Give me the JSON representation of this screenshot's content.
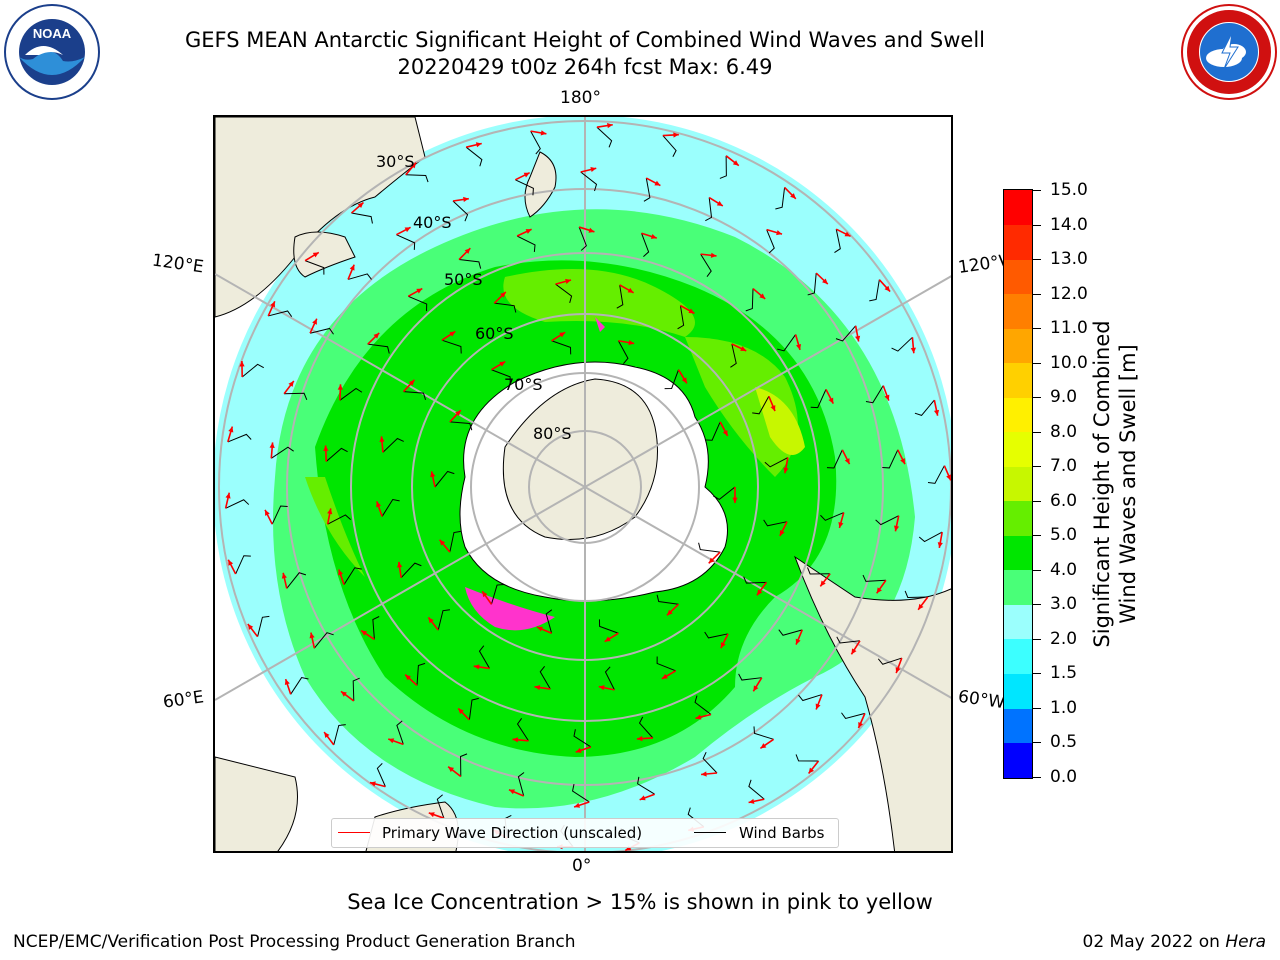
{
  "header": {
    "title_line1": "GEFS MEAN Antarctic Significant Height of Combined Wind Waves and Swell",
    "title_line2": "20220429 t00z 264h fcst   Max: 6.49"
  },
  "logos": {
    "left": {
      "icon": "noaa-logo",
      "text": "NOAA",
      "ring_text": "NATIONAL OCEANIC AND ATMOSPHERIC ADMINISTRATION · U.S. DEPARTMENT OF COMMERCE"
    },
    "right": {
      "icon": "nws-logo",
      "ring_text": "NATIONAL WEATHER SERVICE"
    }
  },
  "map": {
    "projection": "south-polar-stereographic",
    "longitude_labels": {
      "top": "180°",
      "bottom": "0°",
      "left_upper": "120°E",
      "left_lower": "60°E",
      "right_upper": "120°W",
      "right_lower": "60°W"
    },
    "latitude_labels": [
      "30°S",
      "40°S",
      "50°S",
      "60°S",
      "70°S",
      "80°S"
    ],
    "colors": {
      "land": "#eeecdc",
      "ice": "#ffffff",
      "grid": "#b4b4b4",
      "coast": "#000000",
      "arrow": "#ff0000",
      "barb": "#000000",
      "sea_ice": "#ff33cc"
    }
  },
  "legend": {
    "primary_wave_label": "Primary Wave Direction (unscaled)",
    "wind_barbs_label": "Wind Barbs",
    "primary_wave_color": "#ff0000",
    "wind_barbs_color": "#000000"
  },
  "colorbar": {
    "title_line1": "Significant Height of Combined",
    "title_line2": "Wind Waves and Swell [m]",
    "levels": [
      "0.0",
      "0.5",
      "1.0",
      "1.5",
      "2.0",
      "3.0",
      "4.0",
      "5.0",
      "6.0",
      "7.0",
      "8.0",
      "9.0",
      "10.0",
      "11.0",
      "12.0",
      "13.0",
      "14.0",
      "15.0"
    ],
    "colors": [
      "#0000ff",
      "#0073ff",
      "#00e6ff",
      "#3cffff",
      "#9bfffd",
      "#49ff78",
      "#00e600",
      "#65ee00",
      "#c7f700",
      "#e6ff00",
      "#fff000",
      "#ffd000",
      "#ffa600",
      "#ff7f00",
      "#ff5a00",
      "#ff2a00",
      "#ff0000"
    ]
  },
  "caption": "Sea Ice Concentration > 15% is shown in pink to yellow",
  "footer": {
    "left": "NCEP/EMC/Verification Post Processing Product Generation Branch",
    "right_date": "02 May 2022 on ",
    "right_host": "Hera"
  }
}
